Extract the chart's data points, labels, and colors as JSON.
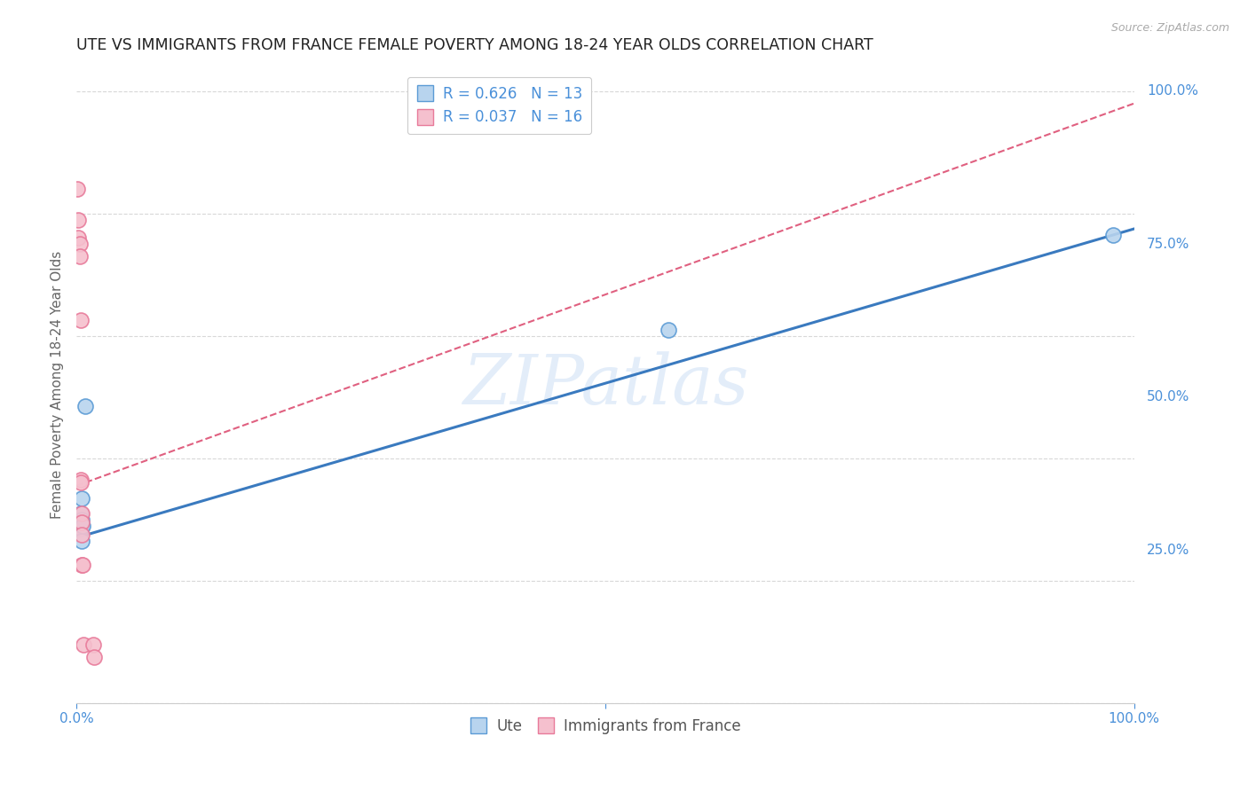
{
  "title": "UTE VS IMMIGRANTS FROM FRANCE FEMALE POVERTY AMONG 18-24 YEAR OLDS CORRELATION CHART",
  "source": "Source: ZipAtlas.com",
  "ylabel": "Female Poverty Among 18-24 Year Olds",
  "background_color": "#ffffff",
  "grid_color": "#d8d8d8",
  "watermark": "ZIPatlas",
  "ute_color": "#b8d4ee",
  "france_color": "#f5c0ce",
  "ute_edge_color": "#5b9bd5",
  "france_edge_color": "#e87a9a",
  "ute_line_color": "#3a7abf",
  "france_line_color": "#e06080",
  "ute_R": "0.626",
  "ute_N": "13",
  "france_R": "0.037",
  "france_N": "16",
  "ute_x": [
    0.002,
    0.002,
    0.003,
    0.003,
    0.004,
    0.004,
    0.005,
    0.005,
    0.005,
    0.006,
    0.008,
    0.56,
    0.98
  ],
  "ute_y": [
    0.295,
    0.285,
    0.305,
    0.3,
    0.31,
    0.285,
    0.335,
    0.3,
    0.265,
    0.29,
    0.485,
    0.61,
    0.765
  ],
  "france_x": [
    0.001,
    0.002,
    0.002,
    0.003,
    0.003,
    0.004,
    0.004,
    0.004,
    0.005,
    0.005,
    0.005,
    0.005,
    0.006,
    0.007,
    0.016,
    0.017
  ],
  "france_y": [
    0.84,
    0.79,
    0.76,
    0.75,
    0.73,
    0.625,
    0.365,
    0.36,
    0.31,
    0.295,
    0.275,
    0.225,
    0.225,
    0.095,
    0.095,
    0.075
  ],
  "ute_trend_x_start": 0.0,
  "ute_trend_x_end": 1.0,
  "ute_trend_y_start": 0.27,
  "ute_trend_y_end": 0.775,
  "france_trend_x_start": 0.0,
  "france_trend_x_end": 1.0,
  "france_trend_y_start": 0.355,
  "france_trend_y_end": 0.98,
  "xlim": [
    0.0,
    1.0
  ],
  "ylim": [
    0.0,
    1.04
  ],
  "ytick_positions": [
    0.25,
    0.5,
    0.75,
    1.0
  ],
  "ytick_labels": [
    "25.0%",
    "50.0%",
    "75.0%",
    "100.0%"
  ],
  "tick_color": "#4a90d9",
  "source_color": "#aaaaaa",
  "title_color": "#222222",
  "axis_label_color": "#666666",
  "title_fontsize": 12.5,
  "label_fontsize": 11,
  "tick_fontsize": 11,
  "legend_fontsize": 12
}
